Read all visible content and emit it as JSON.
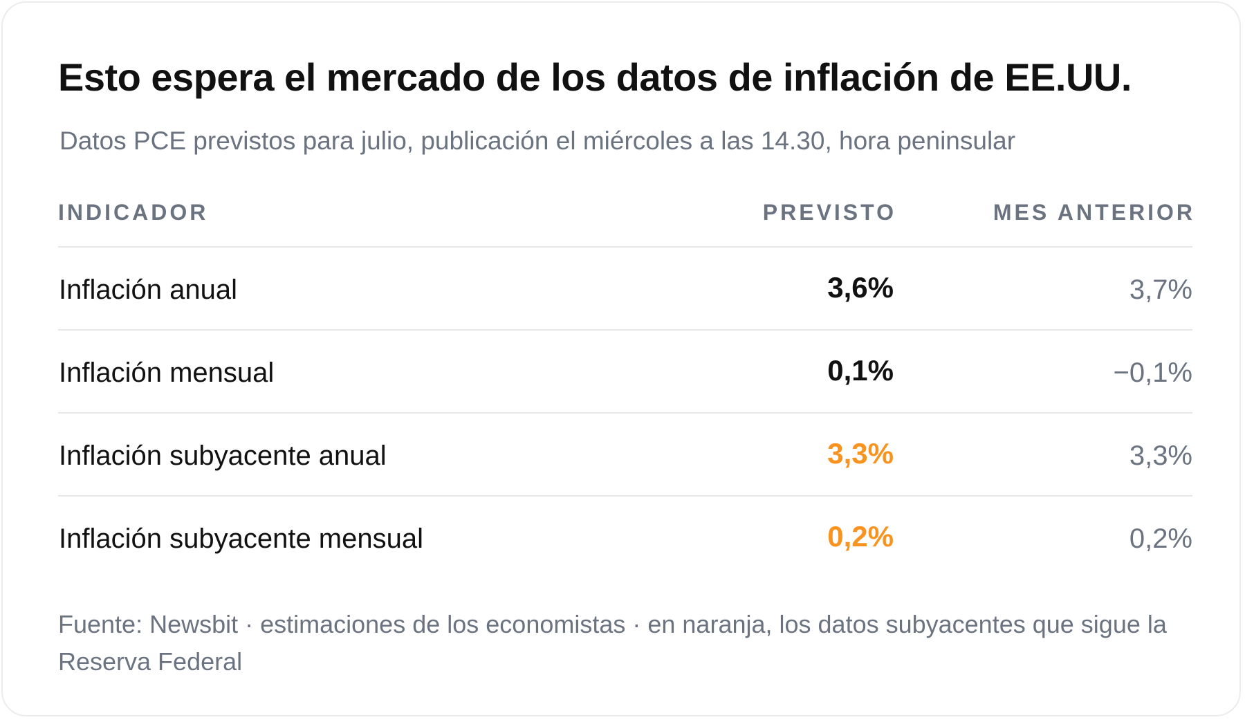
{
  "title": "Esto espera el mercado de los datos de inflación de EE.UU.",
  "subtitle": "Datos PCE previstos para julio, publicación el miércoles a las 14.30, hora peninsular",
  "colors": {
    "highlight": "#f7931e",
    "primary_text": "#111111",
    "secondary_text": "#6b7280",
    "divider": "#e5e7eb"
  },
  "chart_data": {
    "type": "table",
    "columns": [
      "INDICADOR",
      "PREVISTO",
      "MES ANTERIOR"
    ],
    "rows": [
      {
        "indicator": "Inflación anual",
        "forecast": "3,6%",
        "previous": "3,7%",
        "highlight": false
      },
      {
        "indicator": "Inflación mensual",
        "forecast": "0,1%",
        "previous": "−0,1%",
        "highlight": false
      },
      {
        "indicator": "Inflación subyacente anual",
        "forecast": "3,3%",
        "previous": "3,3%",
        "highlight": true
      },
      {
        "indicator": "Inflación subyacente mensual",
        "forecast": "0,2%",
        "previous": "0,2%",
        "highlight": true
      }
    ]
  },
  "footnote": "Fuente: Newsbit · estimaciones de los economistas · en naranja, los datos subyacentes que sigue la Reserva Federal"
}
